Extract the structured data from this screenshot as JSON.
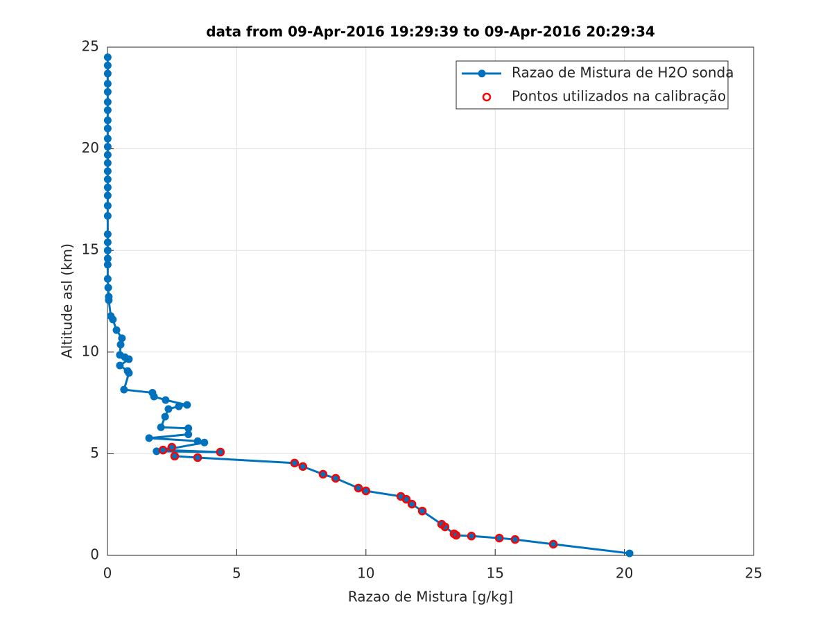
{
  "chart_data": {
    "type": "line",
    "title": "data from 09-Apr-2016 19:29:39 to 09-Apr-2016 20:29:34",
    "xlabel": "Razao de Mistura [g/kg]",
    "ylabel": "Altitude asl (km)",
    "xlim": [
      0,
      25
    ],
    "xticks": [
      0,
      5,
      10,
      15,
      20,
      25
    ],
    "ylim": [
      0,
      25
    ],
    "yticks": [
      0,
      5,
      10,
      15,
      20,
      25
    ],
    "grid": true,
    "legend": "upper right",
    "series": [
      {
        "name": "Razao de Mistura de H2O sonda",
        "color": "#0072bd",
        "line": true,
        "x": [
          20.2,
          17.25,
          15.77,
          15.16,
          14.08,
          13.49,
          13.41,
          13.06,
          12.93,
          12.18,
          11.78,
          11.56,
          11.35,
          10.0,
          9.71,
          8.83,
          8.34,
          7.56,
          7.24,
          3.49,
          2.6,
          2.49,
          2.15,
          4.37,
          1.9,
          3.75,
          3.49,
          1.61,
          3.13,
          3.13,
          2.07,
          2.23,
          2.36,
          2.76,
          3.08,
          2.25,
          1.8,
          1.74,
          0.64,
          0.83,
          0.78,
          0.48,
          0.83,
          0.67,
          0.48,
          0.51,
          0.56,
          0.35,
          0.21,
          0.13,
          0.05,
          0.05,
          0.03,
          0.01,
          0.01,
          0.01,
          0.01,
          0.01,
          0.01,
          0.01,
          0.01,
          0.01,
          0.01,
          0.01,
          0.01,
          0.01,
          0.01,
          0.01,
          0.01,
          0.01,
          0.01,
          0.01,
          0.01,
          0.01,
          0.01,
          0.01,
          0.01,
          0.01
        ],
        "values": [
          0.1,
          0.55,
          0.78,
          0.85,
          0.95,
          0.99,
          1.06,
          1.4,
          1.53,
          2.18,
          2.52,
          2.76,
          2.9,
          3.17,
          3.31,
          3.79,
          3.99,
          4.37,
          4.54,
          4.81,
          4.88,
          5.32,
          5.18,
          5.08,
          5.12,
          5.55,
          5.62,
          5.77,
          5.95,
          6.25,
          6.3,
          6.82,
          7.2,
          7.33,
          7.4,
          7.64,
          7.81,
          8.0,
          8.15,
          8.97,
          9.07,
          9.34,
          9.65,
          9.75,
          9.86,
          10.37,
          10.68,
          11.08,
          11.6,
          11.77,
          12.55,
          12.72,
          13.17,
          13.6,
          14.3,
          14.6,
          15.0,
          15.4,
          15.8,
          16.7,
          17.2,
          17.7,
          18.1,
          18.5,
          18.9,
          19.3,
          19.7,
          20.1,
          20.5,
          21.0,
          21.4,
          21.9,
          22.3,
          22.8,
          23.2,
          23.7,
          24.1,
          24.5
        ]
      },
      {
        "name": "Pontos utilizados na calibração",
        "color": "#ff0000",
        "line": false,
        "x": [
          17.25,
          15.77,
          15.16,
          14.08,
          13.49,
          13.41,
          13.06,
          12.93,
          12.18,
          11.78,
          11.56,
          11.35,
          10.0,
          9.71,
          8.83,
          8.34,
          7.56,
          7.24,
          3.49,
          2.6,
          2.49,
          2.15,
          4.37
        ],
        "values": [
          0.55,
          0.78,
          0.85,
          0.95,
          0.99,
          1.06,
          1.4,
          1.53,
          2.18,
          2.52,
          2.76,
          2.9,
          3.17,
          3.31,
          3.79,
          3.99,
          4.37,
          4.54,
          4.81,
          4.88,
          5.32,
          5.18,
          5.08
        ]
      }
    ]
  }
}
